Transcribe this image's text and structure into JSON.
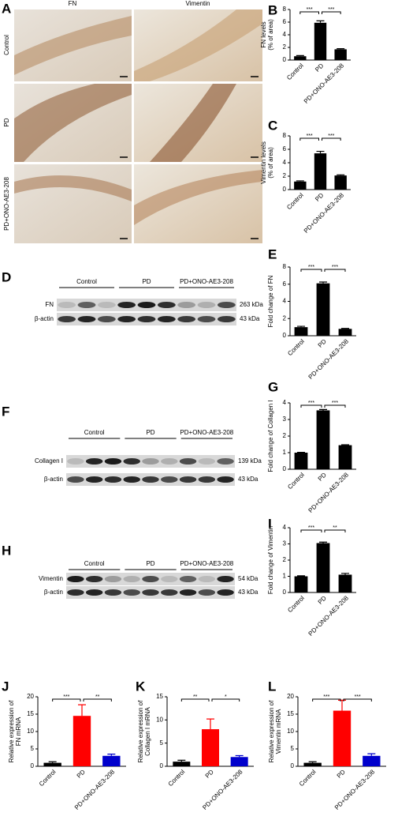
{
  "panel_labels": [
    "A",
    "B",
    "C",
    "D",
    "E",
    "F",
    "G",
    "H",
    "I",
    "J",
    "K",
    "L"
  ],
  "histology": {
    "columns": [
      "FN",
      "Vimentin"
    ],
    "rows": [
      "Control",
      "PD",
      "PD+ONO-AE3-208"
    ]
  },
  "blots": [
    {
      "groups": [
        "Control",
        "PD",
        "PD+ONO-AE3-208"
      ],
      "rows": [
        {
          "label": "FN",
          "size": "263 kDa"
        },
        {
          "label": "β-actin",
          "size": "43 kDa"
        }
      ]
    },
    {
      "groups": [
        "Control",
        "PD",
        "PD+ONO-AE3-208"
      ],
      "rows": [
        {
          "label": "Collagen I",
          "size": "139 kDa"
        },
        {
          "label": "β-actin",
          "size": "43 kDa"
        }
      ]
    },
    {
      "groups": [
        "Control",
        "PD",
        "PD+ONO-AE3-208"
      ],
      "rows": [
        {
          "label": "Vimentin",
          "size": "54 kDa"
        },
        {
          "label": "β-actin",
          "size": "43 kDa"
        }
      ]
    }
  ],
  "chart_data": [
    {
      "type": "bar",
      "ylabel": [
        "FN levels",
        "(% of area)"
      ],
      "categories": [
        "Control",
        "PD",
        "PD+ONO-AE3-208"
      ],
      "values": [
        0.6,
        5.9,
        1.7
      ],
      "errors": [
        0.1,
        0.3,
        0.1
      ],
      "colors": [
        "#000000",
        "#000000",
        "#000000"
      ],
      "ylim": [
        0,
        8
      ],
      "yticks": [
        0,
        2,
        4,
        6,
        8
      ],
      "annotations": [
        "***",
        "***"
      ]
    },
    {
      "type": "bar",
      "ylabel": [
        "Vimentin levels",
        "(% of area)"
      ],
      "categories": [
        "Control",
        "PD",
        "PD+ONO-AE3-208"
      ],
      "values": [
        1.2,
        5.4,
        2.1
      ],
      "errors": [
        0.1,
        0.3,
        0.1
      ],
      "colors": [
        "#000000",
        "#000000",
        "#000000"
      ],
      "ylim": [
        0,
        8
      ],
      "yticks": [
        0,
        2,
        4,
        6,
        8
      ],
      "annotations": [
        "***",
        "***"
      ]
    },
    {
      "type": "bar",
      "ylabel": [
        "Fold change of FN"
      ],
      "categories": [
        "Control",
        "PD",
        "PD+ONO-AE3-208"
      ],
      "values": [
        1.0,
        6.1,
        0.8
      ],
      "errors": [
        0.1,
        0.15,
        0.05
      ],
      "colors": [
        "#000000",
        "#000000",
        "#000000"
      ],
      "ylim": [
        0,
        8
      ],
      "yticks": [
        0,
        2,
        4,
        6,
        8
      ],
      "annotations": [
        "***",
        "***"
      ]
    },
    {
      "type": "bar",
      "ylabel": [
        "Fold change of Collagen I"
      ],
      "categories": [
        "Control",
        "PD",
        "PD+ONO-AE3-208"
      ],
      "values": [
        1.0,
        3.55,
        1.45
      ],
      "errors": [
        0.02,
        0.05,
        0.03
      ],
      "colors": [
        "#000000",
        "#000000",
        "#000000"
      ],
      "ylim": [
        0,
        4
      ],
      "yticks": [
        0,
        1,
        2,
        3,
        4
      ],
      "annotations": [
        "***",
        "***"
      ]
    },
    {
      "type": "bar",
      "ylabel": [
        "Fold change of Vimentin"
      ],
      "categories": [
        "Control",
        "PD",
        "PD+ONO-AE3-208"
      ],
      "values": [
        1.0,
        3.05,
        1.1
      ],
      "errors": [
        0.03,
        0.06,
        0.08
      ],
      "colors": [
        "#000000",
        "#000000",
        "#000000"
      ],
      "ylim": [
        0,
        4
      ],
      "yticks": [
        0,
        1,
        2,
        3,
        4
      ],
      "annotations": [
        "***",
        "**"
      ]
    },
    {
      "type": "bar",
      "ylabel": [
        "Relative expression of",
        "FN mRNA"
      ],
      "categories": [
        "Control",
        "PD",
        "PD+ONO-AE3-208"
      ],
      "values": [
        1,
        14.5,
        3
      ],
      "errors": [
        0.3,
        3.2,
        0.5
      ],
      "colors": [
        "#000000",
        "#ff0000",
        "#0000cc"
      ],
      "ylim": [
        0,
        20
      ],
      "yticks": [
        0,
        5,
        10,
        15,
        20
      ],
      "annotations": [
        "***",
        "**"
      ]
    },
    {
      "type": "bar",
      "ylabel": [
        "Relative expression of",
        "Collagen I mRNA"
      ],
      "categories": [
        "Control",
        "PD",
        "PD+ONO-AE3-208"
      ],
      "values": [
        1,
        8,
        2
      ],
      "errors": [
        0.3,
        2.2,
        0.3
      ],
      "colors": [
        "#000000",
        "#ff0000",
        "#0000cc"
      ],
      "ylim": [
        0,
        15
      ],
      "yticks": [
        0,
        5,
        10,
        15
      ],
      "annotations": [
        "**",
        "*"
      ]
    },
    {
      "type": "bar",
      "ylabel": [
        "Relative expression of",
        "Vimentin mRNA"
      ],
      "categories": [
        "Control",
        "PD",
        "PD+ONO-AE3-208"
      ],
      "values": [
        1,
        16,
        3
      ],
      "errors": [
        0.3,
        3,
        0.6
      ],
      "colors": [
        "#000000",
        "#ff0000",
        "#0000cc"
      ],
      "ylim": [
        0,
        20
      ],
      "yticks": [
        0,
        5,
        10,
        15,
        20
      ],
      "annotations": [
        "***",
        "***"
      ]
    }
  ]
}
